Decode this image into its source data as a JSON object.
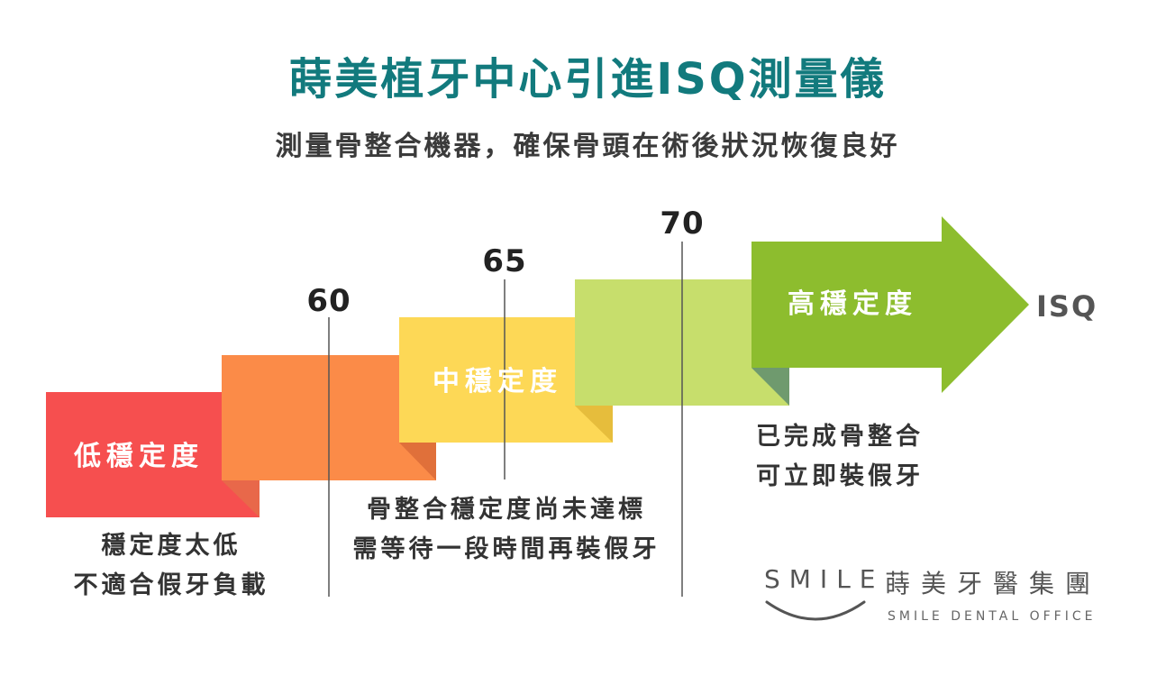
{
  "title": "蒔美植牙中心引進ISQ測量儀",
  "subtitle": "測量骨整合機器，確保骨頭在術後狀況恢復良好",
  "steps": {
    "low_label": "低穩定度",
    "mid_label": "中穩定度",
    "high_label": "高穩定度"
  },
  "thresholds": [
    "60",
    "65",
    "70"
  ],
  "axis_label": "ISQ",
  "descriptions": {
    "low": [
      "穩定度太低",
      "不適合假牙負載"
    ],
    "mid": [
      "骨整合穩定度尚未達標",
      "需等待一段時間再裝假牙"
    ],
    "high": [
      "已完成骨整合",
      "可立即裝假牙"
    ]
  },
  "logo": {
    "word": "SMILE",
    "chinese": "蒔美牙醫集團",
    "english": "SMILE DENTAL OFFICE"
  },
  "colors": {
    "title": "#127a7d",
    "low": "#f64f4f",
    "low_orange": "#fb8b48",
    "mid": "#fdd856",
    "light_green": "#c7de6c",
    "high": "#8dbd2e"
  }
}
